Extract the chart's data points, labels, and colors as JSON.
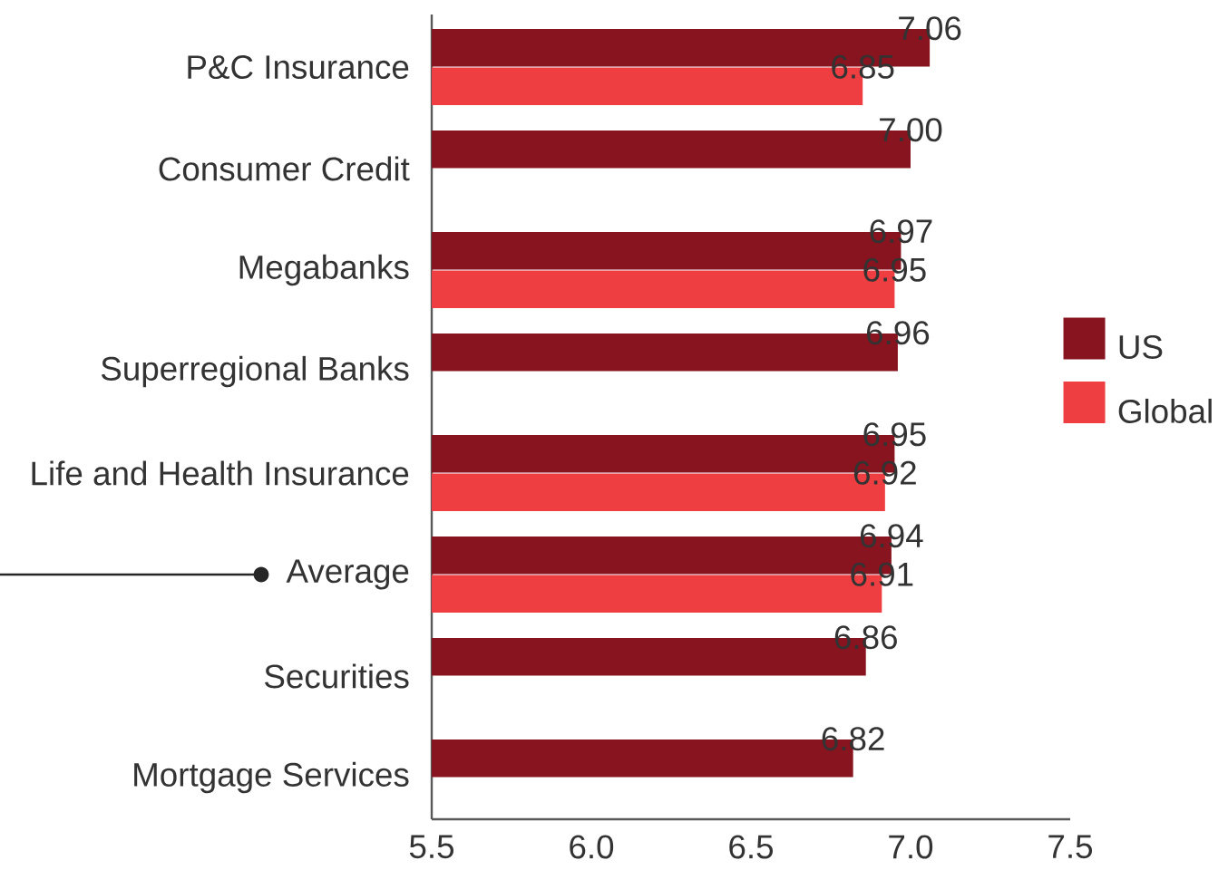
{
  "chart_data": {
    "type": "bar",
    "orientation": "horizontal",
    "categories": [
      "P&C Insurance",
      "Consumer Credit",
      "Megabanks",
      "Superregional Banks",
      "Life and Health Insurance",
      "Average",
      "Securities",
      "Mortgage Services"
    ],
    "series": [
      {
        "name": "US",
        "color": "#87141f",
        "values": [
          7.06,
          7.0,
          6.97,
          6.96,
          6.95,
          6.94,
          6.86,
          6.82
        ],
        "value_labels": [
          "7.06",
          "7.00",
          "6.97",
          "6.96",
          "6.95",
          "6.94",
          "6.86",
          "6.82"
        ]
      },
      {
        "name": "Global",
        "color": "#ee3e42",
        "values": [
          6.85,
          null,
          6.95,
          null,
          6.92,
          6.91,
          null,
          null
        ],
        "value_labels": [
          "6.85",
          null,
          "6.95",
          null,
          "6.92",
          "6.91",
          null,
          null
        ]
      }
    ],
    "xlim": [
      5.5,
      7.5
    ],
    "xticks": [
      5.5,
      {
        "value": 6,
        "label": "6.0"
      },
      6.5,
      {
        "value": 7,
        "label": "7.0"
      },
      7.5
    ],
    "legend": "right"
  }
}
